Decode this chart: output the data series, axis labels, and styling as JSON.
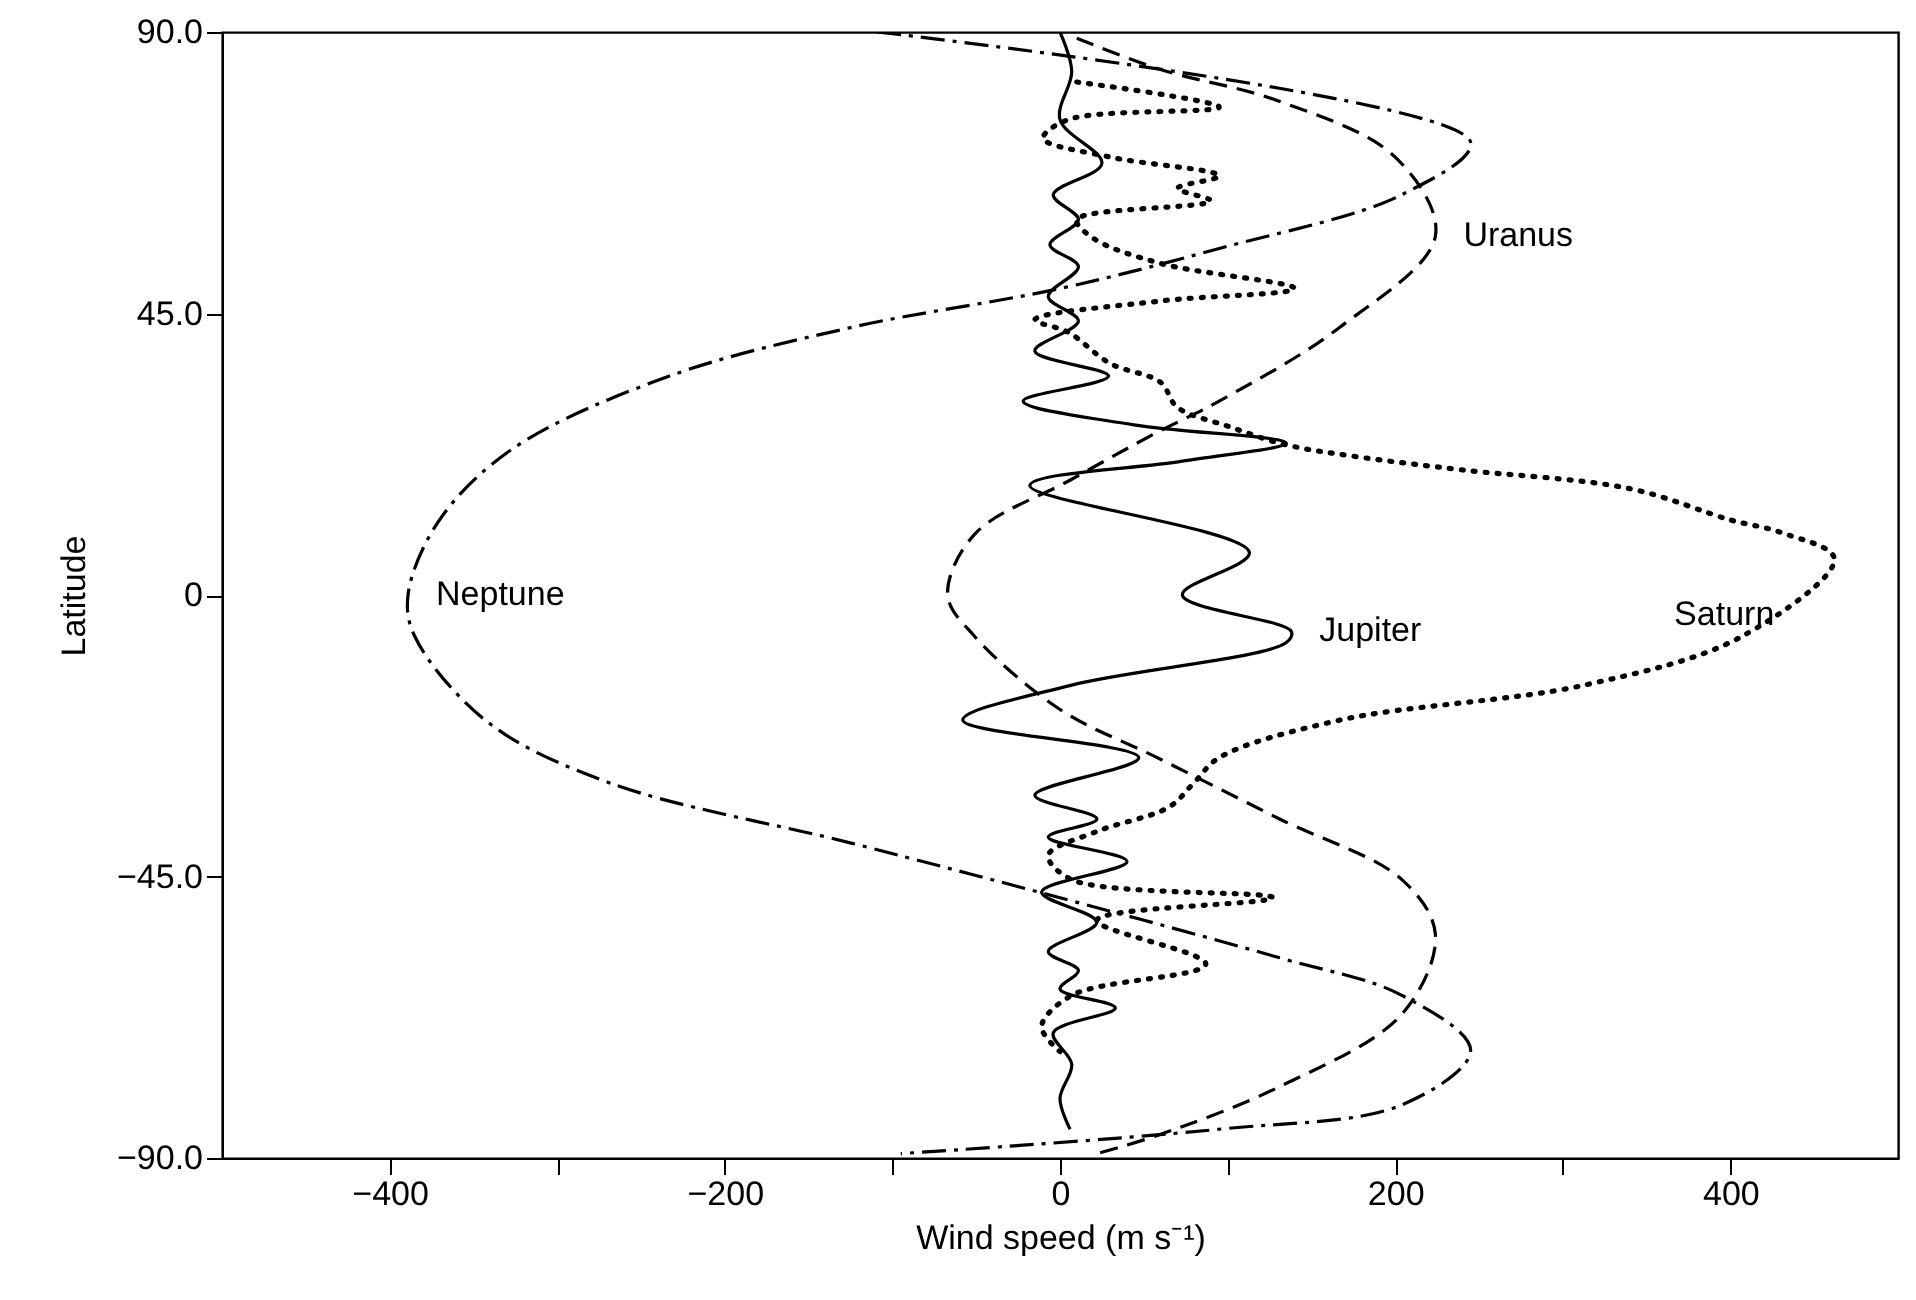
{
  "chart_data": {
    "type": "line",
    "xlabel": "Wind speed (m s⁻¹)",
    "ylabel": "Latitude",
    "xlim": [
      -500,
      500
    ],
    "ylim": [
      -90,
      90
    ],
    "xticks": [
      {
        "value": -400,
        "label": "−400"
      },
      {
        "value": -300,
        "label": null
      },
      {
        "value": -200,
        "label": "−200"
      },
      {
        "value": -100,
        "label": null
      },
      0,
      {
        "value": 100,
        "label": null
      },
      200,
      {
        "value": 300,
        "label": null
      },
      400
    ],
    "yticks": [
      {
        "value": -90,
        "label": "−90.0"
      },
      {
        "value": -45,
        "label": "−45.0"
      },
      0,
      {
        "value": 45,
        "label": "45.0"
      },
      {
        "value": 90,
        "label": "90.0"
      }
    ],
    "grid": false,
    "legend": false,
    "series": [
      {
        "name": "Jupiter",
        "color": "#000000",
        "line_style": "solid",
        "x": [
          0,
          7,
          0,
          25,
          -4,
          11,
          -6,
          11,
          -7,
          11,
          -15,
          29,
          -22,
          44,
          135,
          73,
          -18,
          113,
          73,
          138,
          135,
          7,
          -58,
          47,
          -15,
          22,
          -7,
          40,
          -11,
          22,
          -7,
          11,
          0,
          33,
          -4,
          7,
          0,
          6
        ],
        "values": [
          90,
          83.7,
          76,
          69,
          64,
          60,
          56,
          52.5,
          47.7,
          43.8,
          39,
          35,
          31,
          27.2,
          24.3,
          21.4,
          17.5,
          6.8,
          0,
          -5.8,
          -7.6,
          -14.4,
          -20,
          -26,
          -32,
          -35.8,
          -38.7,
          -42.6,
          -47.5,
          -52.3,
          -57,
          -60,
          -63,
          -66,
          -70,
          -75,
          -80.5,
          -85.4
        ]
      },
      {
        "name": "Saturn",
        "color": "#000000",
        "line_style": "dotted",
        "x": [
          10,
          95,
          5,
          -10,
          30,
          95,
          70,
          90,
          10,
          20,
          60,
          140,
          60,
          -15,
          5,
          30,
          60,
          70,
          100,
          135,
          180,
          240,
          340,
          400,
          430,
          462,
          407,
          313,
          167,
          95,
          80,
          65,
          22,
          -7,
          7,
          127,
          22,
          87,
          7,
          -11,
          0
        ],
        "values": [
          82,
          78,
          76,
          73,
          70,
          67,
          65,
          63,
          60,
          57,
          53,
          49,
          47,
          44,
          42,
          37,
          34,
          30,
          27,
          24,
          22,
          20,
          17,
          12,
          10,
          5.8,
          -6.6,
          -14.4,
          -20,
          -26,
          -30,
          -33.9,
          -37.8,
          -41.6,
          -45.5,
          -48.4,
          -52,
          -59,
          -64,
          -69,
          -73
        ]
      },
      {
        "name": "Uranus",
        "color": "#000000",
        "line_style": "dashed",
        "x": [
          10,
          60,
          130,
          200,
          224,
          167,
          95,
          58,
          7,
          -51,
          -67,
          -51,
          0,
          58,
          131,
          204,
          224,
          204,
          131,
          58,
          22
        ],
        "values": [
          89,
          84,
          79,
          70,
          57.4,
          42.8,
          31,
          26,
          18.5,
          9.7,
          0,
          -6.6,
          -18.3,
          -26,
          -35.8,
          -45.5,
          -54.3,
          -67,
          -78.6,
          -86.4,
          -89.3
        ]
      },
      {
        "name": "Neptune",
        "color": "#000000",
        "line_style": "dashdot",
        "x": [
          -109,
          245,
          204,
          95,
          0,
          -124,
          -233,
          -327,
          -371,
          -389,
          -385,
          -342,
          -269,
          -124,
          0,
          131,
          204,
          245,
          204,
          95,
          -95
        ],
        "values": [
          90,
          72.4,
          64,
          55.4,
          49,
          42.8,
          35,
          23.3,
          11.7,
          0,
          -6.6,
          -20.2,
          -30,
          -39.7,
          -48.4,
          -58,
          -64,
          -72.8,
          -81.5,
          -85.4,
          -89.3
        ]
      }
    ]
  }
}
